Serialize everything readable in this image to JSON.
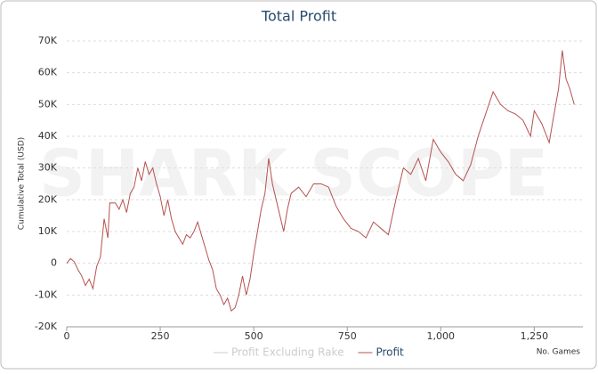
{
  "chart_data": {
    "type": "line",
    "title": "Total Profit",
    "watermark": "SHARK SCOPE",
    "xlabel": "No. Games",
    "ylabel": "Cumulative Total (USD)",
    "xlim": [
      0,
      1380
    ],
    "ylim": [
      -20000,
      70000
    ],
    "xticks": [
      0,
      250,
      500,
      750,
      {
        "value": 1000,
        "label": "1,000"
      },
      {
        "value": 1250,
        "label": "1,250"
      }
    ],
    "yticks": [
      {
        "value": -20000,
        "label": "-20K"
      },
      {
        "value": -10000,
        "label": "-10K"
      },
      0,
      {
        "value": 10000,
        "label": "10K"
      },
      {
        "value": 20000,
        "label": "20K"
      },
      {
        "value": 30000,
        "label": "30K"
      },
      {
        "value": 40000,
        "label": "40K"
      },
      {
        "value": 50000,
        "label": "50K"
      },
      {
        "value": 60000,
        "label": "60K"
      },
      {
        "value": 70000,
        "label": "70K"
      }
    ],
    "grid": true,
    "x": [
      0,
      10,
      20,
      30,
      40,
      50,
      60,
      70,
      80,
      90,
      100,
      110,
      115,
      130,
      140,
      150,
      160,
      170,
      180,
      190,
      200,
      210,
      220,
      230,
      240,
      250,
      260,
      270,
      280,
      290,
      300,
      310,
      320,
      330,
      340,
      350,
      360,
      370,
      380,
      390,
      400,
      410,
      420,
      430,
      440,
      450,
      460,
      470,
      480,
      490,
      500,
      510,
      520,
      530,
      540,
      550,
      560,
      570,
      580,
      590,
      600,
      620,
      640,
      660,
      680,
      700,
      720,
      740,
      760,
      780,
      800,
      820,
      840,
      860,
      880,
      900,
      920,
      940,
      960,
      980,
      1000,
      1020,
      1040,
      1060,
      1080,
      1100,
      1120,
      1140,
      1160,
      1180,
      1200,
      1220,
      1240,
      1250,
      1270,
      1290,
      1300,
      1315,
      1325,
      1335,
      1345,
      1357
    ],
    "series": [
      {
        "name": "Profit Excluding Rake",
        "color": "#cccccc",
        "values": [
          null,
          null,
          null,
          null,
          null,
          null,
          null,
          null,
          null,
          null,
          null,
          null,
          null,
          null,
          null,
          null,
          null,
          null,
          null,
          null,
          null,
          null,
          null,
          null,
          null,
          null,
          null,
          null,
          null,
          null,
          null,
          null,
          null,
          null,
          null,
          null,
          null,
          null,
          null,
          null,
          null,
          null,
          null,
          null,
          null,
          null,
          null,
          null,
          null,
          null,
          null,
          null,
          null,
          null,
          null,
          null,
          null,
          null,
          null,
          null,
          null,
          null,
          null,
          null,
          null,
          null,
          null,
          null,
          null,
          null,
          null,
          null,
          null,
          null,
          null,
          null,
          null,
          null,
          null,
          null,
          null,
          null,
          null,
          null,
          null,
          null,
          null,
          null,
          null,
          null,
          null,
          null,
          null,
          null,
          null,
          null,
          null,
          null,
          null,
          null,
          null,
          null
        ]
      },
      {
        "name": "Profit",
        "color": "#b5514f",
        "values": [
          0,
          1500,
          500,
          -2000,
          -4000,
          -7000,
          -5000,
          -8000,
          -1000,
          2000,
          14000,
          8000,
          19000,
          19000,
          17000,
          20000,
          16000,
          22000,
          24000,
          30000,
          26000,
          32000,
          28000,
          30000,
          25000,
          21000,
          15000,
          20000,
          14000,
          10000,
          8000,
          6000,
          9000,
          8000,
          10000,
          13000,
          9000,
          5000,
          1000,
          -2000,
          -8000,
          -10000,
          -13000,
          -11000,
          -15000,
          -14000,
          -10000,
          -4000,
          -10000,
          -5000,
          3000,
          10000,
          17000,
          22000,
          33000,
          25000,
          20000,
          15000,
          10000,
          17000,
          22000,
          24000,
          21000,
          25000,
          25000,
          24000,
          18000,
          14000,
          11000,
          10000,
          8000,
          13000,
          11000,
          9000,
          20000,
          30000,
          28000,
          33000,
          26000,
          39000,
          35000,
          32000,
          28000,
          26000,
          31000,
          40000,
          47000,
          54000,
          50000,
          48000,
          47000,
          45000,
          40000,
          48000,
          44000,
          38000,
          45000,
          55000,
          67000,
          58000,
          55000,
          50000
        ]
      }
    ]
  }
}
